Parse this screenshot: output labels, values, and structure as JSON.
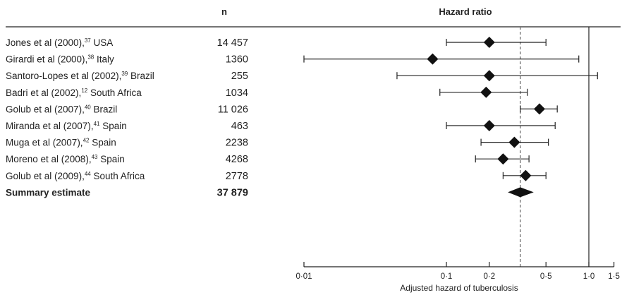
{
  "chart_data": {
    "type": "forest",
    "title": "",
    "columns": {
      "n": "n",
      "hazard_ratio": "Hazard ratio"
    },
    "xlabel": "Adjusted hazard of tuberculosis",
    "x_scale": "log",
    "xlim": [
      0.01,
      1.5
    ],
    "xticks": [
      0.01,
      0.1,
      0.2,
      0.5,
      1.0,
      1.5
    ],
    "xtick_labels": [
      "0·01",
      "0·1",
      "0·2",
      "0·5",
      "1·0",
      "1·5"
    ],
    "reference_line": 1.0,
    "summary_line": 0.33,
    "rows": [
      {
        "study": "Jones et al (2000),",
        "ref": "37",
        "country": " USA",
        "n": "14 457",
        "hr": 0.2,
        "lo": 0.1,
        "hi": 0.5
      },
      {
        "study": "Girardi et al (2000),",
        "ref": "38",
        "country": " Italy",
        "n": "1360",
        "hr": 0.08,
        "lo": 0.01,
        "hi": 0.85
      },
      {
        "study": "Santoro-Lopes et al (2002),",
        "ref": "39",
        "country": " Brazil",
        "n": "255",
        "hr": 0.2,
        "lo": 0.045,
        "hi": 1.15
      },
      {
        "study": "Badri et al (2002),",
        "ref": "12",
        "country": " South Africa",
        "n": "1034",
        "hr": 0.19,
        "lo": 0.09,
        "hi": 0.37
      },
      {
        "study": "Golub et al (2007),",
        "ref": "40",
        "country": " Brazil",
        "n": "11 026",
        "hr": 0.45,
        "lo": 0.33,
        "hi": 0.6
      },
      {
        "study": "Miranda et al (2007),",
        "ref": "41",
        "country": " Spain",
        "n": "463",
        "hr": 0.2,
        "lo": 0.1,
        "hi": 0.58
      },
      {
        "study": "Muga et al (2007),",
        "ref": "42",
        "country": " Spain",
        "n": "2238",
        "hr": 0.3,
        "lo": 0.175,
        "hi": 0.52
      },
      {
        "study": "Moreno et al (2008),",
        "ref": "43",
        "country": " Spain",
        "n": "4268",
        "hr": 0.25,
        "lo": 0.16,
        "hi": 0.38
      },
      {
        "study": "Golub et al (2009),",
        "ref": "44",
        "country": " South Africa",
        "n": "2778",
        "hr": 0.36,
        "lo": 0.25,
        "hi": 0.5
      }
    ],
    "summary": {
      "label": "Summary estimate",
      "n": "37 879",
      "hr": 0.33,
      "lo": 0.27,
      "hi": 0.41
    }
  }
}
